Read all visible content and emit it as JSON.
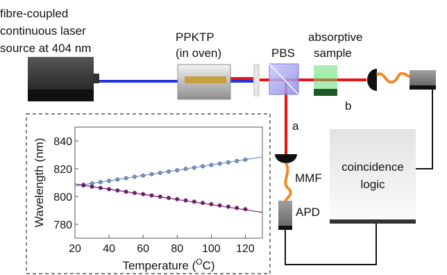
{
  "labels": {
    "laser_line1": "fibre-coupled",
    "laser_line2": "continuous laser",
    "laser_line3": "source at 404 nm",
    "crystal_line1": "PPKTP",
    "crystal_line2": "(in oven)",
    "pbs": "PBS",
    "sample_line1": "absorptive",
    "sample_line2": "sample",
    "arm_b": "b",
    "arm_a": "a",
    "mmf": "MMF",
    "apd": "APD",
    "coincidence_line1": "coincidence",
    "coincidence_line2": "logic"
  },
  "colors": {
    "pump_beam": "#2233dd",
    "spdc_beam": "#ee1111",
    "fibre": "#f08a24",
    "crystal": "#c8a040",
    "filter": "#66dd77",
    "series_upper": "#6f94c8",
    "series_lower": "#7a1578"
  },
  "chart_data": {
    "type": "scatter",
    "xlabel_main": "Temperature (",
    "xlabel_sup": "O",
    "xlabel_end": "C)",
    "ylabel": "Wavelength (nm)",
    "xlim": [
      20,
      130
    ],
    "ylim": [
      770,
      850
    ],
    "xticks": [
      20,
      40,
      60,
      80,
      100,
      120
    ],
    "yticks": [
      780,
      800,
      820,
      840
    ],
    "grid": false,
    "series": [
      {
        "color": "#6f94c8",
        "fit": [
          [
            20,
            807.5
          ],
          [
            130,
            828.5
          ]
        ],
        "x": [
          25,
          30,
          35,
          40,
          45,
          50,
          55,
          60,
          65,
          70,
          75,
          80,
          85,
          90,
          95,
          100,
          105,
          110,
          115,
          120
        ],
        "y": [
          808.5,
          809.4,
          810.4,
          811.3,
          812.3,
          813.2,
          814.2,
          815.1,
          816.1,
          817.0,
          818.0,
          818.9,
          819.9,
          820.8,
          821.8,
          822.7,
          823.7,
          824.6,
          825.6,
          826.5
        ]
      },
      {
        "color": "#7a1578",
        "fit": [
          [
            20,
            809.0
          ],
          [
            130,
            788.6
          ]
        ],
        "x": [
          25,
          30,
          35,
          40,
          45,
          50,
          55,
          60,
          65,
          70,
          75,
          80,
          85,
          90,
          95,
          100,
          105,
          110,
          115,
          120
        ],
        "y": [
          808.0,
          807.1,
          806.2,
          805.3,
          804.4,
          803.5,
          802.6,
          801.7,
          800.8,
          799.9,
          799.0,
          798.1,
          797.2,
          796.3,
          795.4,
          794.5,
          793.6,
          792.7,
          791.8,
          790.9
        ]
      }
    ]
  }
}
